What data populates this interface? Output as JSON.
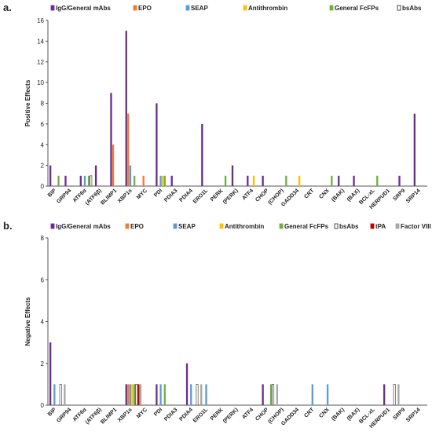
{
  "colors": {
    "IgG/General mAbs": "#6a2c91",
    "EPO": "#ed7d31",
    "SEAP": "#5b9bd5",
    "Antithrombin": "#ffc000",
    "General FcFPs": "#70ad47",
    "bsAbs": "#ffffff",
    "tPA": "#c00000",
    "Factor VIII": "#a6a6a6"
  },
  "chart_data": [
    {
      "type": "bar",
      "panel_label": "a.",
      "ylabel": "Positive Effects",
      "ylim": [
        0,
        16
      ],
      "yticks": [
        0,
        2,
        4,
        6,
        8,
        10,
        12,
        14,
        16
      ],
      "legend_position": "top",
      "categories": [
        "BIP",
        "GRP94",
        "ATF6α",
        "(ATF6β)",
        "BLIMP1",
        "XBP1s",
        "MYC",
        "PDI",
        "PDIA3",
        "PDIA4",
        "ERO1L",
        "PERK",
        "(PERK)",
        "ATF4",
        "CHOP",
        "(CHOP)",
        "GADD34",
        "CRT",
        "CNX",
        "(BAK)",
        "(BAX)",
        "BCL-xL",
        "HERPUD1",
        "SRP9",
        "SRP14"
      ],
      "series": [
        {
          "name": "IgG/General mAbs",
          "values": [
            2,
            1,
            1,
            2,
            9,
            15,
            0,
            8,
            1,
            0,
            6,
            0,
            2,
            1,
            1,
            0,
            0,
            0,
            0,
            1,
            1,
            0,
            0,
            1,
            7
          ]
        },
        {
          "name": "EPO",
          "values": [
            0,
            0,
            0,
            0,
            4,
            7,
            1,
            0,
            0,
            0,
            0,
            0,
            0,
            0,
            0,
            0,
            0,
            0,
            0,
            0,
            0,
            0,
            0,
            0,
            0
          ]
        },
        {
          "name": "SEAP",
          "values": [
            0,
            0,
            1,
            0,
            0,
            2,
            0,
            1,
            0,
            0,
            0,
            0,
            0,
            0,
            0,
            0,
            0,
            0,
            0,
            0,
            0,
            0,
            0,
            0,
            0
          ]
        },
        {
          "name": "Antithrombin",
          "values": [
            0,
            0,
            0,
            0,
            0,
            0,
            0,
            1,
            0,
            0,
            0,
            0,
            0,
            1,
            0,
            0,
            1,
            0,
            0,
            0,
            0,
            0,
            0,
            0,
            0
          ]
        },
        {
          "name": "General FcFPs",
          "values": [
            1,
            0,
            1,
            0,
            0,
            1,
            0,
            1,
            0,
            0,
            0,
            1,
            0,
            0,
            0,
            1,
            0,
            0,
            1,
            0,
            0,
            1,
            0,
            0,
            0
          ]
        },
        {
          "name": "bsAbs",
          "values": [
            0,
            0,
            1,
            0,
            0,
            0,
            0,
            0,
            0,
            0,
            0,
            0,
            0,
            0,
            0,
            0,
            0,
            0,
            0,
            0,
            0,
            0,
            0,
            0,
            0
          ]
        }
      ]
    },
    {
      "type": "bar",
      "panel_label": "b.",
      "ylabel": "Negative Effects",
      "ylim": [
        0,
        8
      ],
      "yticks": [
        0,
        2,
        4,
        6,
        8
      ],
      "legend_position": "top",
      "categories": [
        "BIP",
        "GRP94",
        "ATF6α",
        "(ATF6β)",
        "BLIMP1",
        "XBP1s",
        "MYC",
        "PDI",
        "PDIA3",
        "PDIA4",
        "ERO1L",
        "PERK",
        "(PERK)",
        "ATF4",
        "CHOP",
        "(CHOP)",
        "GADD34",
        "CRT",
        "CNX",
        "(BAK)",
        "(BAX)",
        "BCL-xL",
        "HERPUD1",
        "SRP9",
        "SRP14"
      ],
      "series": [
        {
          "name": "IgG/General mAbs",
          "values": [
            3,
            0,
            0,
            0,
            0,
            1,
            0,
            1,
            0,
            2,
            0,
            0,
            0,
            0,
            1,
            0,
            0,
            0,
            0,
            0,
            0,
            0,
            1,
            0,
            0
          ]
        },
        {
          "name": "EPO",
          "values": [
            0,
            0,
            0,
            0,
            0,
            1,
            0,
            0,
            0,
            0,
            0,
            0,
            0,
            0,
            0,
            0,
            0,
            0,
            0,
            0,
            0,
            0,
            0,
            0,
            0
          ]
        },
        {
          "name": "SEAP",
          "values": [
            1,
            0,
            0,
            0,
            0,
            1,
            0,
            1,
            0,
            1,
            1,
            0,
            0,
            0,
            0,
            0,
            0,
            1,
            1,
            0,
            0,
            0,
            0,
            0,
            0
          ]
        },
        {
          "name": "Antithrombin",
          "values": [
            0,
            0,
            0,
            0,
            0,
            1,
            0,
            0,
            0,
            0,
            0,
            0,
            0,
            0,
            0,
            0,
            0,
            0,
            0,
            0,
            0,
            0,
            0,
            0,
            0
          ]
        },
        {
          "name": "General FcFPs",
          "values": [
            0,
            0,
            0,
            0,
            0,
            1,
            0,
            1,
            0,
            0,
            0,
            0,
            0,
            0,
            1,
            0,
            0,
            0,
            0,
            0,
            0,
            0,
            0,
            0,
            0
          ]
        },
        {
          "name": "bsAbs",
          "values": [
            1,
            0,
            0,
            0,
            0,
            1,
            0,
            0,
            0,
            1,
            0,
            0,
            0,
            0,
            1,
            0,
            0,
            0,
            0,
            0,
            0,
            0,
            1,
            0,
            0
          ]
        },
        {
          "name": "tPA",
          "values": [
            0,
            0,
            0,
            0,
            0,
            1,
            0,
            0,
            0,
            0,
            0,
            0,
            0,
            0,
            0,
            0,
            0,
            0,
            0,
            0,
            0,
            0,
            0,
            0,
            0
          ]
        },
        {
          "name": "Factor VIII",
          "values": [
            1,
            0,
            0,
            0,
            0,
            1,
            0,
            0,
            0,
            1,
            0,
            0,
            0,
            0,
            1,
            0,
            0,
            0,
            0,
            0,
            0,
            0,
            1,
            0,
            0
          ]
        }
      ]
    }
  ]
}
